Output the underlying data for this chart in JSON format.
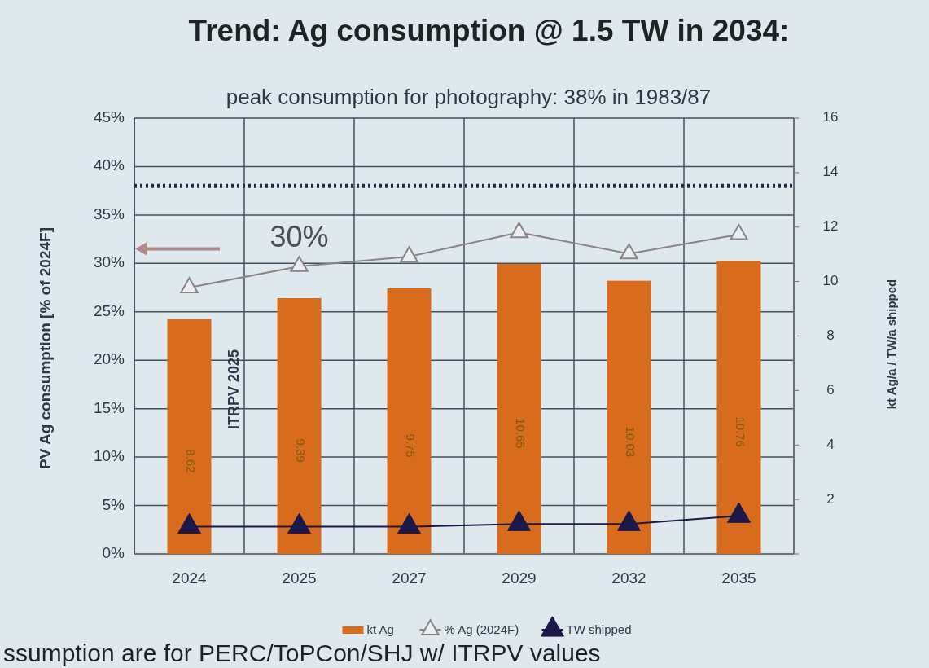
{
  "chart_data": {
    "type": "bar",
    "title": "Trend: Ag consumption @ 1.5 TW in 2034:",
    "subtitle": "peak consumption for photography: 38% in 1983/87",
    "ylabel": "PV Ag consumption  [% of 2024F]",
    "y2label": "kt Ag/a / TW/a shipped",
    "categories": [
      "2024",
      "2025",
      "2027",
      "2029",
      "2032",
      "2035"
    ],
    "series": [
      {
        "name": "kt Ag",
        "axis": "y2",
        "color": "#d96c1c",
        "values": [
          8.62,
          9.39,
          9.75,
          10.65,
          10.03,
          10.76
        ],
        "data_labels": true
      },
      {
        "name": "% Ag (2024F)",
        "type": "line",
        "color": "#8a8486",
        "marker": "triangle",
        "values": [
          27.5,
          29.7,
          30.7,
          33.2,
          31.0,
          33.0
        ]
      },
      {
        "name": "TW shipped",
        "type": "line",
        "axis": "y2",
        "color": "#1c1848",
        "marker": "triangle",
        "values": [
          1.0,
          1.0,
          1.0,
          1.1,
          1.1,
          1.4
        ]
      }
    ],
    "ylim": [
      0,
      45
    ],
    "yticks": [
      {
        "value": 0,
        "label": "0%"
      },
      {
        "value": 5,
        "label": "5%"
      },
      {
        "value": 10,
        "label": "10%"
      },
      {
        "value": 15,
        "label": "15%"
      },
      {
        "value": 20,
        "label": "20%"
      },
      {
        "value": 25,
        "label": "25%"
      },
      {
        "value": 30,
        "label": "30%"
      },
      {
        "value": 35,
        "label": "35%"
      },
      {
        "value": 40,
        "label": "40%"
      },
      {
        "value": 45,
        "label": "45%"
      }
    ],
    "y2lim": [
      0,
      16
    ],
    "y2ticks": [
      {
        "value": 0,
        "label": null
      },
      2,
      4,
      6,
      8,
      10,
      12,
      14,
      16
    ],
    "ref_lines": [
      {
        "axis": "y",
        "value": 38,
        "color": "#1f2a44",
        "line_style": "dotted"
      }
    ],
    "annotations": [
      "30%",
      "ITRPV 2025",
      "ssumption are for PERC/ToPCon/SHJ w/ ITRPV values"
    ],
    "grid": true,
    "legend": "bottom"
  }
}
